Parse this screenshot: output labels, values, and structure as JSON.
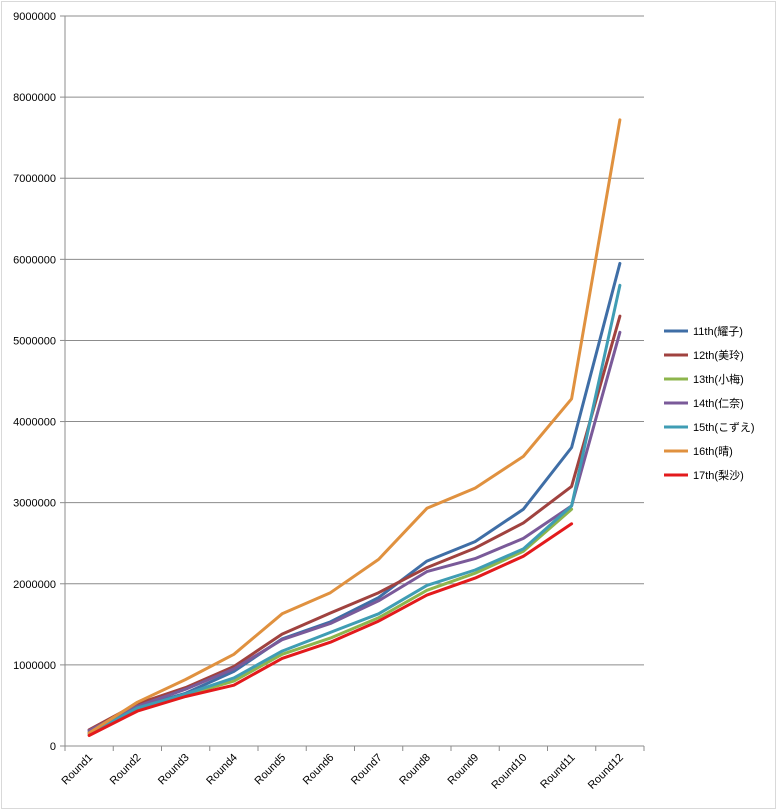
{
  "chart_data": {
    "type": "line",
    "title": "",
    "xlabel": "",
    "ylabel": "",
    "ylim": [
      0,
      9000000
    ],
    "yticks": [
      "0",
      "1000000",
      "2000000",
      "3000000",
      "4000000",
      "5000000",
      "6000000",
      "7000000",
      "8000000",
      "9000000"
    ],
    "categories": [
      "Round1",
      "Round2",
      "Round3",
      "Round4",
      "Round5",
      "Round6",
      "Round7",
      "Round8",
      "Round9",
      "Round10",
      "Round11",
      "Round12"
    ],
    "grid": true,
    "legend_position": "right",
    "series": [
      {
        "name": "11th(耀子)",
        "color": "#3f6ea6",
        "values": [
          170000,
          480000,
          650000,
          920000,
          1320000,
          1530000,
          1830000,
          2280000,
          2520000,
          2920000,
          3680000,
          5950000
        ]
      },
      {
        "name": "12th(美玲)",
        "color": "#a0423f",
        "values": [
          200000,
          520000,
          720000,
          980000,
          1380000,
          1640000,
          1890000,
          2200000,
          2440000,
          2750000,
          3200000,
          5300000
        ]
      },
      {
        "name": "13th(小梅)",
        "color": "#8db54c",
        "values": [
          150000,
          450000,
          630000,
          800000,
          1130000,
          1330000,
          1580000,
          1920000,
          2130000,
          2400000,
          2920000,
          null
        ]
      },
      {
        "name": "14th(仁奈)",
        "color": "#7a5a99",
        "values": [
          190000,
          490000,
          700000,
          950000,
          1310000,
          1510000,
          1790000,
          2150000,
          2310000,
          2560000,
          2960000,
          5100000
        ]
      },
      {
        "name": "15th(こずえ)",
        "color": "#3f9db4",
        "values": [
          150000,
          470000,
          640000,
          840000,
          1170000,
          1400000,
          1630000,
          1980000,
          2170000,
          2430000,
          2960000,
          5680000
        ]
      },
      {
        "name": "16th(晴)",
        "color": "#e0913f",
        "values": [
          160000,
          540000,
          820000,
          1130000,
          1630000,
          1890000,
          2300000,
          2930000,
          3180000,
          3570000,
          4280000,
          7720000
        ]
      },
      {
        "name": "17th(梨沙)",
        "color": "#e31a1c",
        "values": [
          130000,
          430000,
          610000,
          750000,
          1080000,
          1280000,
          1540000,
          1860000,
          2070000,
          2340000,
          2740000,
          null
        ]
      }
    ]
  }
}
